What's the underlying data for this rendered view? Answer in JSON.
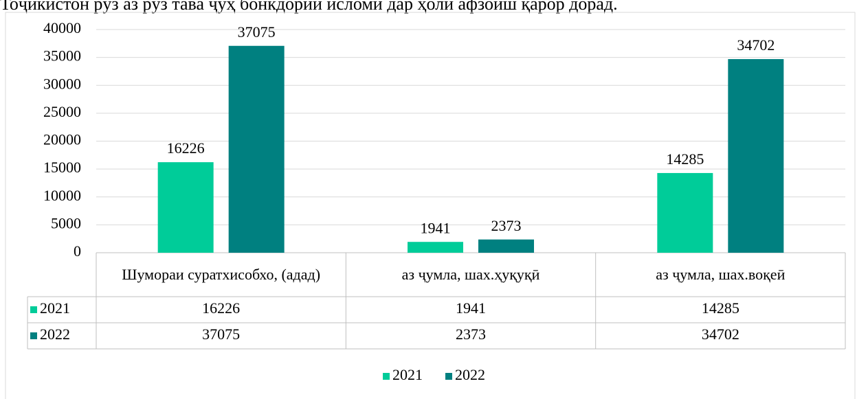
{
  "caption": "Тоҷикистон рӯз аз рӯз тава ҷуҳ бонкдории исломи дар ҳоли афзоиш қарор дорад.",
  "chart_data": {
    "type": "bar",
    "categories": [
      "Шумораи суратхисобхо, (адад)",
      "аз ҷумла, шах.ҳуқуқӣ",
      "аз ҷумла, шах.воқеӣ"
    ],
    "series": [
      {
        "name": "2021",
        "color": "#00cc99",
        "values": [
          16226,
          1941,
          14285
        ]
      },
      {
        "name": "2022",
        "color": "#008080",
        "values": [
          37075,
          2373,
          34702
        ]
      }
    ],
    "ylim": [
      0,
      40000
    ],
    "yticks": [
      0,
      5000,
      10000,
      15000,
      20000,
      25000,
      30000,
      35000,
      40000
    ],
    "grid": true,
    "legend": "bottom",
    "data_table": true
  }
}
